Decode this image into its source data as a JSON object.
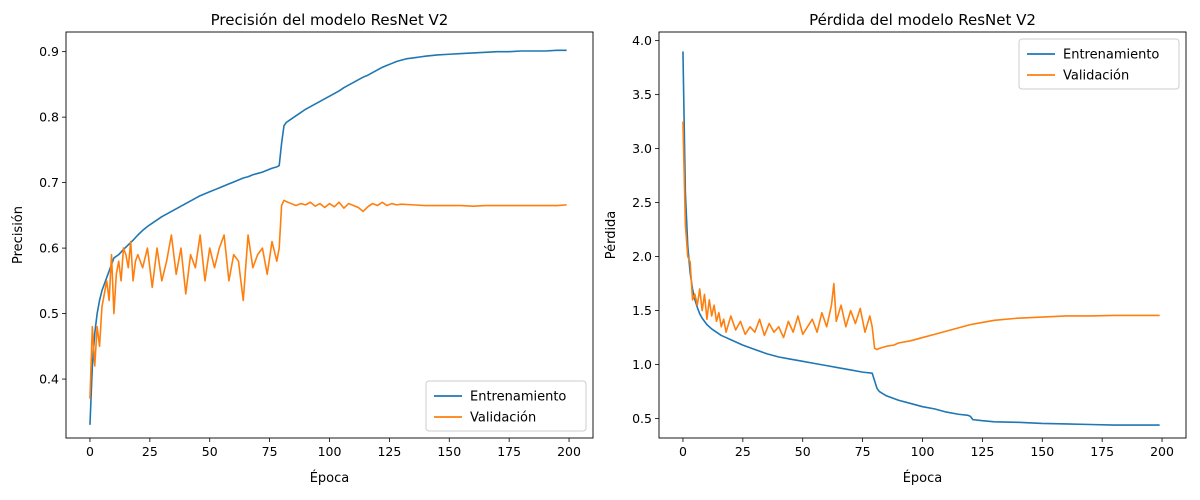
{
  "colors": {
    "train": "#1f77b4",
    "val": "#ff7f0e"
  },
  "chart_data": [
    {
      "type": "line",
      "title": "Precisión del modelo ResNet V2",
      "xlabel": "Época",
      "ylabel": "Precisión",
      "xlim": [
        -10,
        210
      ],
      "ylim": [
        0.31,
        0.93
      ],
      "xticks": [
        0,
        25,
        50,
        75,
        100,
        125,
        150,
        175,
        200
      ],
      "xtick_labels": [
        "0",
        "25",
        "50",
        "75",
        "100",
        "125",
        "150",
        "175",
        "200"
      ],
      "yticks": [
        0.4,
        0.5,
        0.6,
        0.7,
        0.8,
        0.9
      ],
      "ytick_labels": [
        "0.4",
        "0.5",
        "0.6",
        "0.7",
        "0.8",
        "0.9"
      ],
      "legend": "lower-right",
      "series": [
        {
          "name": "Entrenamiento",
          "color_key": "train",
          "x": [
            0,
            1,
            2,
            3,
            4,
            5,
            6,
            7,
            8,
            9,
            10,
            12,
            14,
            16,
            18,
            20,
            22,
            24,
            26,
            28,
            30,
            32,
            34,
            36,
            38,
            40,
            42,
            44,
            46,
            48,
            50,
            52,
            54,
            56,
            58,
            60,
            62,
            64,
            66,
            68,
            70,
            72,
            74,
            76,
            78,
            79,
            80,
            81,
            82,
            84,
            86,
            88,
            90,
            92,
            94,
            96,
            98,
            100,
            102,
            104,
            106,
            108,
            110,
            112,
            114,
            116,
            118,
            120,
            122,
            124,
            126,
            128,
            130,
            132,
            134,
            136,
            138,
            140,
            145,
            150,
            155,
            160,
            165,
            170,
            175,
            180,
            185,
            190,
            195,
            199
          ],
          "values": [
            0.33,
            0.42,
            0.47,
            0.5,
            0.52,
            0.535,
            0.545,
            0.555,
            0.565,
            0.575,
            0.585,
            0.59,
            0.598,
            0.605,
            0.612,
            0.62,
            0.627,
            0.633,
            0.638,
            0.643,
            0.648,
            0.652,
            0.656,
            0.66,
            0.664,
            0.668,
            0.672,
            0.676,
            0.68,
            0.683,
            0.686,
            0.689,
            0.692,
            0.695,
            0.698,
            0.701,
            0.704,
            0.707,
            0.709,
            0.712,
            0.714,
            0.716,
            0.719,
            0.722,
            0.724,
            0.726,
            0.76,
            0.787,
            0.792,
            0.797,
            0.802,
            0.807,
            0.812,
            0.816,
            0.82,
            0.824,
            0.828,
            0.832,
            0.836,
            0.84,
            0.845,
            0.849,
            0.853,
            0.857,
            0.861,
            0.864,
            0.868,
            0.872,
            0.876,
            0.879,
            0.882,
            0.885,
            0.887,
            0.889,
            0.89,
            0.891,
            0.892,
            0.893,
            0.895,
            0.896,
            0.897,
            0.898,
            0.899,
            0.9,
            0.9,
            0.901,
            0.901,
            0.901,
            0.902,
            0.902
          ]
        },
        {
          "name": "Validación",
          "color_key": "val",
          "x": [
            0,
            1,
            2,
            3,
            4,
            5,
            6,
            7,
            8,
            9,
            10,
            11,
            12,
            13,
            14,
            15,
            16,
            17,
            18,
            19,
            20,
            22,
            24,
            26,
            28,
            30,
            32,
            34,
            36,
            38,
            40,
            42,
            44,
            46,
            48,
            50,
            52,
            54,
            56,
            58,
            60,
            62,
            64,
            66,
            68,
            70,
            72,
            74,
            76,
            78,
            79,
            80,
            81,
            82,
            84,
            86,
            88,
            90,
            92,
            94,
            96,
            98,
            100,
            102,
            104,
            106,
            108,
            110,
            112,
            114,
            116,
            118,
            120,
            122,
            124,
            126,
            128,
            130,
            135,
            140,
            145,
            150,
            155,
            160,
            165,
            170,
            175,
            180,
            185,
            190,
            195,
            199
          ],
          "values": [
            0.37,
            0.48,
            0.42,
            0.48,
            0.45,
            0.51,
            0.53,
            0.55,
            0.52,
            0.59,
            0.5,
            0.56,
            0.58,
            0.55,
            0.6,
            0.59,
            0.57,
            0.61,
            0.55,
            0.58,
            0.59,
            0.57,
            0.6,
            0.54,
            0.6,
            0.55,
            0.58,
            0.62,
            0.56,
            0.6,
            0.53,
            0.59,
            0.57,
            0.62,
            0.55,
            0.6,
            0.57,
            0.6,
            0.62,
            0.55,
            0.59,
            0.58,
            0.52,
            0.62,
            0.57,
            0.59,
            0.6,
            0.56,
            0.61,
            0.58,
            0.6,
            0.665,
            0.673,
            0.671,
            0.668,
            0.665,
            0.668,
            0.666,
            0.67,
            0.664,
            0.668,
            0.662,
            0.668,
            0.663,
            0.67,
            0.661,
            0.668,
            0.665,
            0.662,
            0.656,
            0.663,
            0.668,
            0.665,
            0.67,
            0.665,
            0.668,
            0.666,
            0.667,
            0.666,
            0.665,
            0.665,
            0.665,
            0.665,
            0.664,
            0.665,
            0.665,
            0.665,
            0.665,
            0.665,
            0.665,
            0.665,
            0.666
          ]
        }
      ]
    },
    {
      "type": "line",
      "title": "Pérdida del modelo ResNet V2",
      "xlabel": "Época",
      "ylabel": "Pérdida",
      "xlim": [
        -10,
        210
      ],
      "ylim": [
        0.32,
        4.08
      ],
      "xticks": [
        0,
        25,
        50,
        75,
        100,
        125,
        150,
        175,
        200
      ],
      "xtick_labels": [
        "0",
        "25",
        "50",
        "75",
        "100",
        "125",
        "150",
        "175",
        "200"
      ],
      "yticks": [
        0.5,
        1.0,
        1.5,
        2.0,
        2.5,
        3.0,
        3.5,
        4.0
      ],
      "ytick_labels": [
        "0.5",
        "1.0",
        "1.5",
        "2.0",
        "2.5",
        "3.0",
        "3.5",
        "4.0"
      ],
      "legend": "top-right",
      "series": [
        {
          "name": "Entrenamiento",
          "color_key": "train",
          "x": [
            0,
            1,
            2,
            3,
            4,
            5,
            6,
            7,
            8,
            9,
            10,
            12,
            14,
            16,
            18,
            20,
            25,
            30,
            35,
            40,
            45,
            50,
            55,
            60,
            65,
            70,
            75,
            79,
            80,
            81,
            82,
            85,
            90,
            95,
            100,
            105,
            110,
            115,
            119,
            120,
            121,
            125,
            130,
            140,
            150,
            160,
            170,
            180,
            190,
            199
          ],
          "values": [
            3.9,
            2.6,
            2.1,
            1.85,
            1.7,
            1.6,
            1.53,
            1.47,
            1.43,
            1.4,
            1.37,
            1.33,
            1.3,
            1.27,
            1.25,
            1.23,
            1.18,
            1.14,
            1.1,
            1.07,
            1.05,
            1.03,
            1.01,
            0.99,
            0.97,
            0.95,
            0.93,
            0.92,
            0.85,
            0.78,
            0.75,
            0.71,
            0.67,
            0.64,
            0.61,
            0.59,
            0.56,
            0.54,
            0.53,
            0.52,
            0.49,
            0.48,
            0.47,
            0.465,
            0.455,
            0.45,
            0.445,
            0.44,
            0.44,
            0.44
          ]
        },
        {
          "name": "Validación",
          "color_key": "val",
          "x": [
            0,
            1,
            2,
            3,
            4,
            5,
            6,
            7,
            8,
            9,
            10,
            11,
            12,
            13,
            14,
            15,
            16,
            17,
            18,
            20,
            22,
            24,
            26,
            28,
            30,
            32,
            34,
            36,
            38,
            40,
            42,
            44,
            46,
            48,
            50,
            52,
            54,
            56,
            58,
            60,
            62,
            63,
            64,
            66,
            68,
            70,
            72,
            74,
            76,
            78,
            79,
            80,
            81,
            82,
            85,
            88,
            90,
            95,
            100,
            105,
            110,
            115,
            120,
            125,
            130,
            140,
            150,
            160,
            170,
            180,
            190,
            199
          ],
          "values": [
            3.25,
            2.3,
            2.0,
            1.95,
            1.6,
            1.65,
            1.55,
            1.7,
            1.5,
            1.65,
            1.42,
            1.6,
            1.45,
            1.55,
            1.4,
            1.48,
            1.35,
            1.42,
            1.3,
            1.45,
            1.32,
            1.4,
            1.28,
            1.35,
            1.3,
            1.42,
            1.27,
            1.38,
            1.3,
            1.35,
            1.25,
            1.4,
            1.3,
            1.45,
            1.28,
            1.35,
            1.42,
            1.3,
            1.48,
            1.35,
            1.55,
            1.75,
            1.4,
            1.55,
            1.35,
            1.5,
            1.38,
            1.52,
            1.3,
            1.45,
            1.35,
            1.15,
            1.14,
            1.15,
            1.17,
            1.18,
            1.2,
            1.22,
            1.25,
            1.28,
            1.31,
            1.34,
            1.37,
            1.39,
            1.41,
            1.43,
            1.44,
            1.45,
            1.45,
            1.455,
            1.455,
            1.455
          ]
        }
      ]
    }
  ]
}
